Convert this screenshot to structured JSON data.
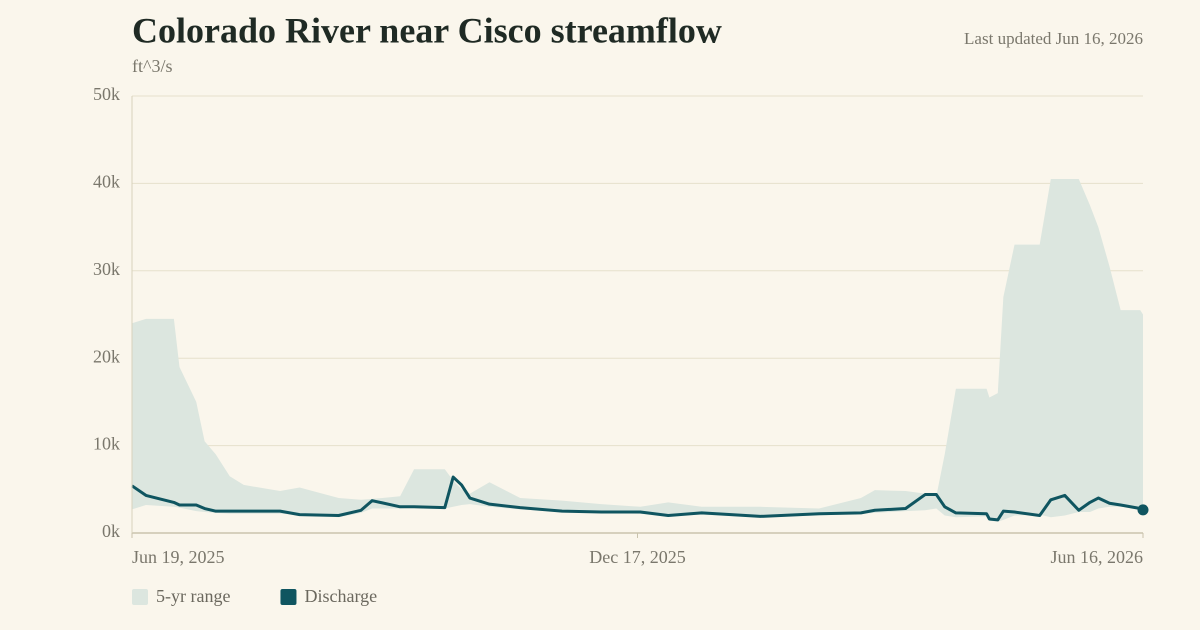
{
  "chart_data": {
    "type": "band-line",
    "title": "Colorado River near Cisco streamflow",
    "subtitle": "Last updated Jun 16, 2026",
    "y_label": "ft^3/s",
    "x": [
      "2025-06-19",
      "2025-06-24",
      "2025-07-04",
      "2025-07-06",
      "2025-07-12",
      "2025-07-15",
      "2025-07-19",
      "2025-07-24",
      "2025-07-29",
      "2025-08-11",
      "2025-08-18",
      "2025-09-01",
      "2025-09-09",
      "2025-09-13",
      "2025-09-23",
      "2025-09-28",
      "2025-10-09",
      "2025-10-12",
      "2025-10-15",
      "2025-10-18",
      "2025-10-25",
      "2025-11-05",
      "2025-11-20",
      "2025-12-04",
      "2025-12-18",
      "2025-12-28",
      "2026-01-09",
      "2026-01-30",
      "2026-02-20",
      "2026-03-07",
      "2026-03-12",
      "2026-03-23",
      "2026-03-30",
      "2026-04-03",
      "2026-04-06",
      "2026-04-10",
      "2026-04-21",
      "2026-04-22",
      "2026-04-25",
      "2026-04-27",
      "2026-05-01",
      "2026-05-10",
      "2026-05-14",
      "2026-05-19",
      "2026-05-24",
      "2026-05-28",
      "2026-05-31",
      "2026-06-04",
      "2026-06-08",
      "2026-06-15",
      "2026-06-16"
    ],
    "series": [
      {
        "name": "5-yr range",
        "color": "#dce6df",
        "low": [
          2700,
          3200,
          3000,
          2900,
          2500,
          2400,
          2300,
          2200,
          2200,
          2200,
          2100,
          1800,
          2300,
          2800,
          2800,
          3000,
          2800,
          3000,
          3200,
          3300,
          3000,
          2700,
          2400,
          2300,
          2200,
          2000,
          2100,
          1800,
          2000,
          2200,
          2300,
          2500,
          2600,
          2800,
          2000,
          1800,
          1900,
          1400,
          1300,
          1500,
          2000,
          2100,
          1800,
          2000,
          2400,
          2400,
          2800,
          3000,
          3000,
          2800,
          2500
        ],
        "high": [
          24000,
          24500,
          24500,
          19000,
          15000,
          10500,
          9000,
          6500,
          5500,
          4800,
          5200,
          4000,
          3800,
          3900,
          4200,
          7300,
          7300,
          6000,
          5000,
          4500,
          5800,
          4000,
          3700,
          3300,
          3000,
          3500,
          3000,
          3000,
          2800,
          4000,
          4900,
          4800,
          4500,
          4200,
          9000,
          16500,
          16500,
          15500,
          16000,
          27000,
          33000,
          33000,
          40500,
          40500,
          40500,
          37500,
          35000,
          30500,
          25500,
          25500,
          25000
        ]
      },
      {
        "name": "Discharge",
        "color": "#0f5560",
        "values": [
          5400,
          4300,
          3500,
          3200,
          3200,
          2800,
          2500,
          2500,
          2500,
          2500,
          2100,
          2000,
          2600,
          3700,
          3000,
          3000,
          2900,
          6400,
          5500,
          4000,
          3300,
          2900,
          2500,
          2400,
          2400,
          2000,
          2300,
          1900,
          2200,
          2300,
          2600,
          2800,
          4400,
          4400,
          3000,
          2300,
          2200,
          1600,
          1500,
          2500,
          2400,
          2000,
          3800,
          4300,
          2600,
          3500,
          4000,
          3400,
          3200,
          2800,
          2650
        ]
      }
    ],
    "xlim": [
      "2025-06-19",
      "2026-06-16"
    ],
    "xticks": [
      {
        "value": "2025-06-19",
        "label": "Jun 19, 2025"
      },
      {
        "value": "2025-12-17",
        "label": "Dec 17, 2025"
      },
      {
        "value": "2026-06-16",
        "label": "Jun 16, 2026"
      }
    ],
    "ylim": [
      0,
      50000
    ],
    "yticks": [
      {
        "value": 0,
        "label": "0k"
      },
      {
        "value": 10000,
        "label": "10k"
      },
      {
        "value": 20000,
        "label": "20k"
      },
      {
        "value": 30000,
        "label": "30k"
      },
      {
        "value": 40000,
        "label": "40k"
      },
      {
        "value": 50000,
        "label": "50k"
      }
    ],
    "grid": true
  }
}
